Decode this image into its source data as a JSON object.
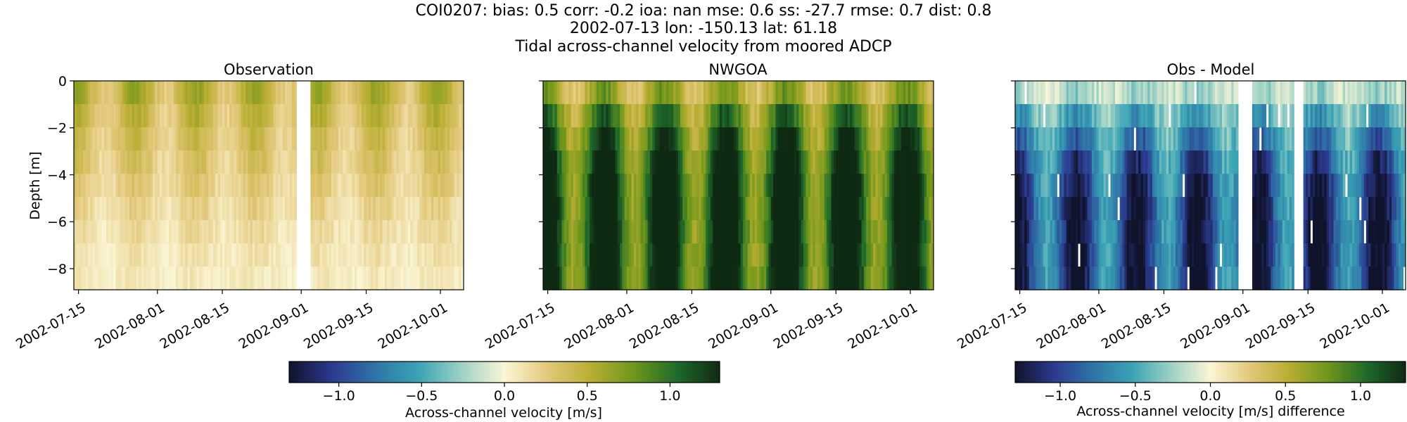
{
  "figure": {
    "title_lines": [
      "COI0207: bias: 0.5  corr: -0.2  ioa: nan  mse: 0.6  ss: -27.7  rmse: 0.7  dist: 0.8",
      "2002-07-13 lon: -150.13 lat: 61.18",
      "Tidal across-channel velocity from moored ADCP"
    ]
  },
  "chart_data": [
    {
      "type": "heatmap",
      "title": "Observation",
      "ylabel": "Depth [m]",
      "xlabel": "",
      "xlim": [
        "2002-07-14",
        "2002-10-06"
      ],
      "ylim": [
        -8.9,
        0
      ],
      "x_ticks": [
        "2002-07-15",
        "2002-08-01",
        "2002-08-15",
        "2002-09-01",
        "2002-09-15",
        "2002-10-01"
      ],
      "y_ticks": [
        0,
        -2,
        -4,
        -6,
        -8
      ],
      "depth_levels": [
        -0.5,
        -1.5,
        -2.5,
        -3.5,
        -4.5,
        -5.5,
        -6.5,
        -7.5,
        -8.5
      ],
      "profile": [
        0.45,
        0.38,
        0.32,
        0.27,
        0.22,
        0.17,
        0.13,
        0.09,
        0.06
      ],
      "variability": 0.12,
      "gaps": [
        [
          "2002-08-31",
          "2002-09-03"
        ]
      ],
      "colormap": "across-channel velocity (diverging)",
      "vlim": [
        -1.3,
        1.3
      ]
    },
    {
      "type": "heatmap",
      "title": "NWGOA",
      "xlabel": "",
      "xlim": [
        "2002-07-14",
        "2002-10-06"
      ],
      "ylim": [
        -8.9,
        0
      ],
      "x_ticks": [
        "2002-07-15",
        "2002-08-01",
        "2002-08-15",
        "2002-09-01",
        "2002-09-15",
        "2002-10-01"
      ],
      "y_ticks": [
        0,
        -2,
        -4,
        -6,
        -8
      ],
      "depth_levels": [
        -0.5,
        -1.5,
        -2.5,
        -3.5,
        -4.5,
        -5.5,
        -6.5,
        -7.5,
        -8.5
      ],
      "profile": [
        0.55,
        0.8,
        0.95,
        1.05,
        1.12,
        1.15,
        1.15,
        1.15,
        1.15
      ],
      "variability": 0.2,
      "gaps": [],
      "colormap": "across-channel velocity (diverging)",
      "vlim": [
        -1.3,
        1.3
      ]
    },
    {
      "type": "heatmap",
      "title": "Obs - Model",
      "xlabel": "",
      "xlim": [
        "2002-07-14",
        "2002-10-06"
      ],
      "ylim": [
        -8.9,
        0
      ],
      "x_ticks": [
        "2002-07-15",
        "2002-08-01",
        "2002-08-15",
        "2002-09-01",
        "2002-09-15",
        "2002-10-01"
      ],
      "y_ticks": [
        0,
        -2,
        -4,
        -6,
        -8
      ],
      "depth_levels": [
        -0.5,
        -1.5,
        -2.5,
        -3.5,
        -4.5,
        -5.5,
        -6.5,
        -7.5,
        -8.5
      ],
      "profile": [
        -0.2,
        -0.45,
        -0.65,
        -0.8,
        -0.9,
        -0.95,
        -0.95,
        -0.95,
        -0.95
      ],
      "variability": 0.25,
      "gaps": [
        [
          "2002-08-31",
          "2002-09-03"
        ],
        [
          "2002-09-12",
          "2002-09-14"
        ]
      ],
      "colormap": "across-channel velocity (diverging)",
      "vlim": [
        -1.3,
        1.3
      ]
    }
  ],
  "colorbars": [
    {
      "label": "Across-channel velocity [m/s]",
      "ticks": [
        "−1.0",
        "−0.5",
        "0.0",
        "0.5",
        "1.0"
      ],
      "tick_values": [
        -1.0,
        -0.5,
        0.0,
        0.5,
        1.0
      ],
      "range": [
        -1.3,
        1.3
      ]
    },
    {
      "label": "Across-channel velocity [m/s] difference",
      "ticks": [
        "−1.0",
        "−0.5",
        "0.0",
        "0.5",
        "1.0"
      ],
      "tick_values": [
        -1.0,
        -0.5,
        0.0,
        0.5,
        1.0
      ],
      "range": [
        -1.3,
        1.3
      ]
    }
  ],
  "colormap_stops": [
    "#10132c",
    "#2b3a8f",
    "#2f74a7",
    "#3aa3b5",
    "#9dd1c6",
    "#fbf6d6",
    "#e3c87a",
    "#b9ae32",
    "#6f971b",
    "#1f6a2b",
    "#0f2a12"
  ]
}
